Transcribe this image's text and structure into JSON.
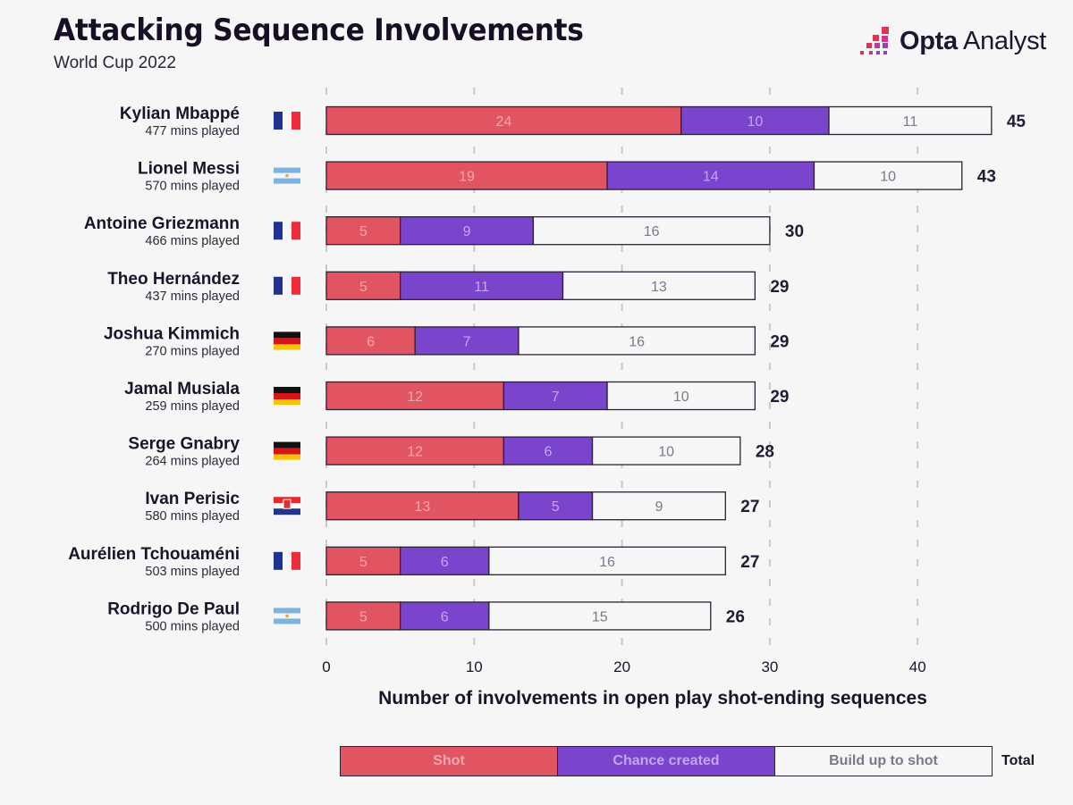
{
  "header": {
    "title": "Attacking Sequence Involvements",
    "subtitle": "World Cup 2022",
    "logo_bold": "Opta",
    "logo_light": "Analyst"
  },
  "colors": {
    "shot": "#e05561",
    "chance": "#7a44cc",
    "buildup": "#f6f6f7",
    "shot_label": "#f4a5ad",
    "chance_label": "#c3a6f0",
    "buildup_label": "#7d7888",
    "outline": "#2a2235",
    "grid": "#c9c9cc",
    "text_dark": "#1a1428"
  },
  "legend": {
    "items": [
      {
        "key": "shot",
        "label": "Shot"
      },
      {
        "key": "chance",
        "label": "Chance created"
      },
      {
        "key": "buildup",
        "label": "Build up to shot"
      }
    ],
    "total_label": "Total"
  },
  "chart_data": {
    "type": "bar",
    "orientation": "horizontal",
    "stacked": true,
    "title": "Attacking Sequence Involvements",
    "subtitle": "World Cup 2022",
    "xlabel": "Number of involvements in open play shot-ending sequences",
    "ylabel": "",
    "xlim": [
      0,
      45
    ],
    "xticks": [
      0,
      10,
      20,
      30,
      40
    ],
    "grid": "vertical dashed",
    "legend_position": "bottom",
    "categories": [
      "Kylian Mbappé",
      "Lionel Messi",
      "Antoine Griezmann",
      "Theo Hernández",
      "Joshua Kimmich",
      "Jamal Musiala",
      "Serge Gnabry",
      "Ivan Perisic",
      "Aurélien Tchouaméni",
      "Rodrigo De Paul"
    ],
    "minutes_played": [
      "477 mins played",
      "570 mins played",
      "466 mins played",
      "437 mins played",
      "270 mins played",
      "259 mins played",
      "264 mins played",
      "580 mins played",
      "503 mins played",
      "500 mins played"
    ],
    "countries": [
      "France",
      "Argentina",
      "France",
      "France",
      "Germany",
      "Germany",
      "Germany",
      "Croatia",
      "France",
      "Argentina"
    ],
    "series": [
      {
        "name": "Shot",
        "key": "shot",
        "values": [
          24,
          19,
          5,
          5,
          6,
          12,
          12,
          13,
          5,
          5
        ]
      },
      {
        "name": "Chance created",
        "key": "chance",
        "values": [
          10,
          14,
          9,
          11,
          7,
          7,
          6,
          5,
          6,
          6
        ]
      },
      {
        "name": "Build up to shot",
        "key": "buildup",
        "values": [
          11,
          10,
          16,
          13,
          16,
          10,
          10,
          9,
          16,
          15
        ]
      }
    ],
    "totals": [
      45,
      43,
      30,
      29,
      29,
      29,
      28,
      27,
      27,
      26
    ]
  }
}
